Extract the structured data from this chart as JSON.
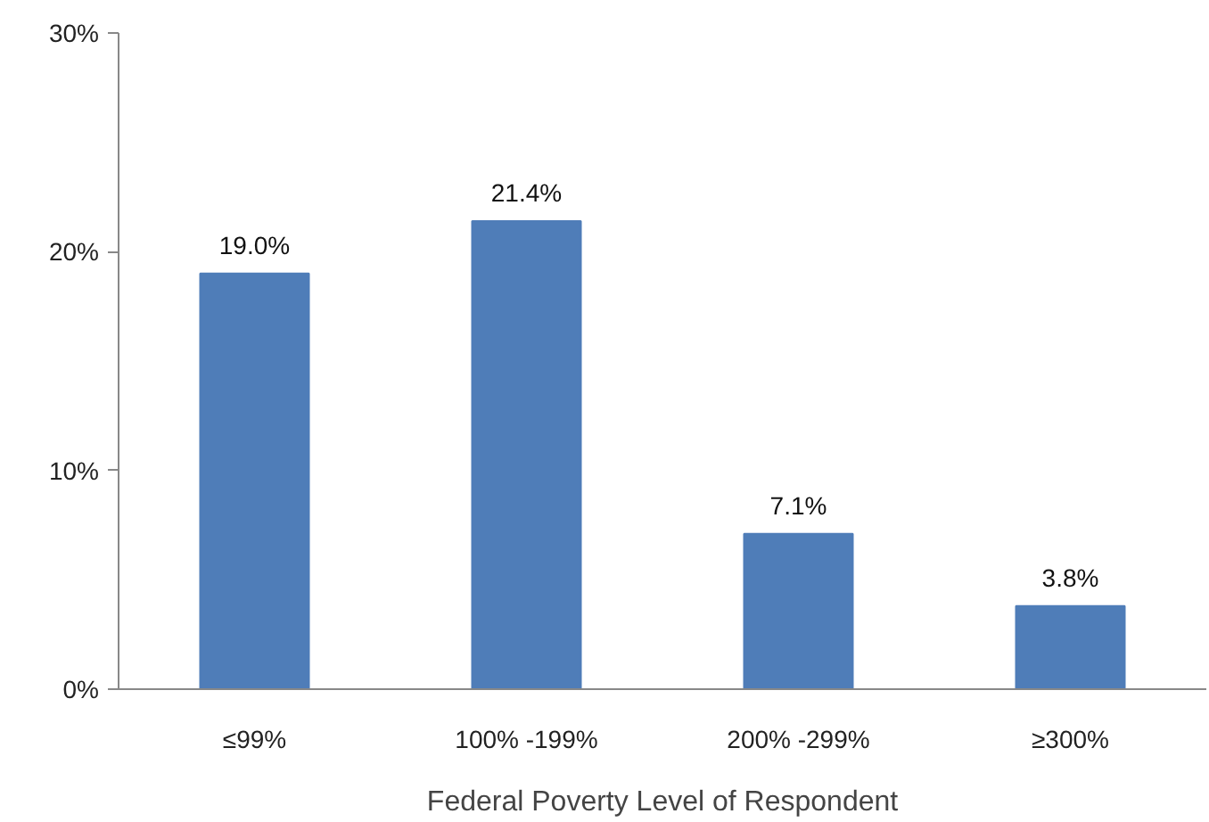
{
  "chart_data": {
    "type": "bar",
    "xlabel": "Federal Poverty Level of Respondent",
    "categories": [
      "≤99%",
      "100% -199%",
      "200% -299%",
      "≥300%"
    ],
    "values": [
      19.0,
      21.4,
      7.1,
      3.8
    ],
    "value_labels": [
      "19.0%",
      "21.4%",
      "7.1%",
      "3.8%"
    ],
    "color": "#4f7db8",
    "ylim": [
      0,
      30
    ],
    "yticks": [
      {
        "value": 0,
        "label": "0%"
      },
      {
        "value": 10,
        "label": "10%"
      },
      {
        "value": 20,
        "label": "20%"
      },
      {
        "value": 30,
        "label": "30%"
      }
    ],
    "grid": false
  }
}
